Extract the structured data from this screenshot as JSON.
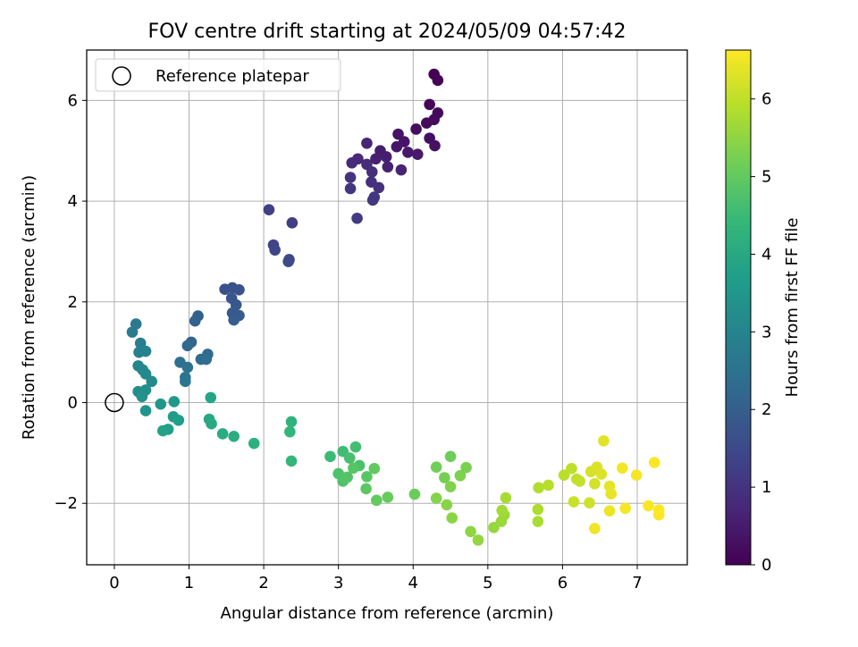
{
  "chart_data": {
    "type": "scatter",
    "title": "FOV centre drift starting at 2024/05/09 04:57:42",
    "xlabel": "Angular distance from reference (arcmin)",
    "ylabel": "Rotation from reference (arcmin)",
    "xlim": [
      -0.37,
      7.67
    ],
    "ylim": [
      -3.22,
      7.0
    ],
    "xticks": [
      0,
      1,
      2,
      3,
      4,
      5,
      6,
      7
    ],
    "yticks": [
      -2,
      0,
      2,
      4,
      6
    ],
    "xtick_labels": [
      "0",
      "1",
      "2",
      "3",
      "4",
      "5",
      "6",
      "7"
    ],
    "ytick_labels": [
      "−2",
      "0",
      "2",
      "4",
      "6"
    ],
    "grid": true,
    "legend": {
      "position": "top-left",
      "entries": [
        {
          "label": "Reference platepar",
          "marker": "open-circle"
        }
      ]
    },
    "reference_point": {
      "x": 0,
      "y": 0
    },
    "colorbar": {
      "label": "Hours from first FF file",
      "colormap": "viridis",
      "range": [
        0,
        6.63
      ],
      "ticks": [
        0,
        1,
        2,
        3,
        4,
        5,
        6
      ],
      "tick_labels": [
        "0",
        "1",
        "2",
        "3",
        "4",
        "5",
        "6"
      ]
    },
    "colormap_colors": [
      "#440154",
      "#482878",
      "#3e4989",
      "#31688e",
      "#26828e",
      "#1f9e89",
      "#35b779",
      "#6ece58",
      "#b5de2b",
      "#fde725"
    ],
    "points": [
      {
        "x": 4.28,
        "y": 6.52,
        "h": 0.02
      },
      {
        "x": 4.33,
        "y": 6.4,
        "h": 0.05
      },
      {
        "x": 4.22,
        "y": 5.92,
        "h": 0.1
      },
      {
        "x": 4.33,
        "y": 5.75,
        "h": 0.13
      },
      {
        "x": 4.28,
        "y": 5.62,
        "h": 0.17
      },
      {
        "x": 4.18,
        "y": 5.55,
        "h": 0.2
      },
      {
        "x": 4.04,
        "y": 5.43,
        "h": 0.24
      },
      {
        "x": 4.22,
        "y": 5.25,
        "h": 0.27
      },
      {
        "x": 4.29,
        "y": 5.1,
        "h": 0.3
      },
      {
        "x": 3.8,
        "y": 5.33,
        "h": 0.34
      },
      {
        "x": 3.88,
        "y": 5.18,
        "h": 0.38
      },
      {
        "x": 3.78,
        "y": 5.08,
        "h": 0.41
      },
      {
        "x": 3.93,
        "y": 4.97,
        "h": 0.45
      },
      {
        "x": 4.06,
        "y": 4.93,
        "h": 0.48
      },
      {
        "x": 3.56,
        "y": 5.0,
        "h": 0.52
      },
      {
        "x": 3.64,
        "y": 4.88,
        "h": 0.55
      },
      {
        "x": 3.5,
        "y": 4.84,
        "h": 0.59
      },
      {
        "x": 3.66,
        "y": 4.68,
        "h": 0.62
      },
      {
        "x": 3.84,
        "y": 4.62,
        "h": 0.66
      },
      {
        "x": 3.38,
        "y": 5.15,
        "h": 0.7
      },
      {
        "x": 3.26,
        "y": 4.84,
        "h": 0.74
      },
      {
        "x": 3.18,
        "y": 4.76,
        "h": 0.78
      },
      {
        "x": 3.38,
        "y": 4.73,
        "h": 0.82
      },
      {
        "x": 3.45,
        "y": 4.58,
        "h": 0.86
      },
      {
        "x": 3.44,
        "y": 4.38,
        "h": 0.9
      },
      {
        "x": 3.54,
        "y": 4.27,
        "h": 0.94
      },
      {
        "x": 3.16,
        "y": 4.47,
        "h": 0.98
      },
      {
        "x": 3.16,
        "y": 4.25,
        "h": 1.02
      },
      {
        "x": 3.48,
        "y": 4.08,
        "h": 1.06
      },
      {
        "x": 3.46,
        "y": 4.02,
        "h": 1.1
      },
      {
        "x": 3.25,
        "y": 3.66,
        "h": 1.16
      },
      {
        "x": 2.38,
        "y": 3.57,
        "h": 1.22
      },
      {
        "x": 2.07,
        "y": 3.83,
        "h": 1.28
      },
      {
        "x": 2.13,
        "y": 3.13,
        "h": 1.34
      },
      {
        "x": 2.15,
        "y": 3.03,
        "h": 1.4
      },
      {
        "x": 2.34,
        "y": 2.84,
        "h": 1.46
      },
      {
        "x": 2.33,
        "y": 2.8,
        "h": 1.52
      },
      {
        "x": 1.48,
        "y": 2.25,
        "h": 1.62
      },
      {
        "x": 1.58,
        "y": 2.28,
        "h": 1.68
      },
      {
        "x": 1.67,
        "y": 2.24,
        "h": 1.72
      },
      {
        "x": 1.57,
        "y": 2.07,
        "h": 1.76
      },
      {
        "x": 1.63,
        "y": 1.94,
        "h": 1.8
      },
      {
        "x": 1.58,
        "y": 1.78,
        "h": 1.85
      },
      {
        "x": 1.67,
        "y": 1.73,
        "h": 1.9
      },
      {
        "x": 1.6,
        "y": 1.64,
        "h": 1.95
      },
      {
        "x": 1.12,
        "y": 1.72,
        "h": 2.02
      },
      {
        "x": 1.08,
        "y": 1.62,
        "h": 2.08
      },
      {
        "x": 1.03,
        "y": 1.2,
        "h": 2.14
      },
      {
        "x": 0.98,
        "y": 1.13,
        "h": 2.2
      },
      {
        "x": 1.25,
        "y": 0.96,
        "h": 2.26
      },
      {
        "x": 1.16,
        "y": 0.86,
        "h": 2.32
      },
      {
        "x": 1.23,
        "y": 0.86,
        "h": 2.38
      },
      {
        "x": 0.88,
        "y": 0.8,
        "h": 2.44
      },
      {
        "x": 0.98,
        "y": 0.7,
        "h": 2.5
      },
      {
        "x": 0.95,
        "y": 0.5,
        "h": 2.56
      },
      {
        "x": 0.95,
        "y": 0.42,
        "h": 2.62
      },
      {
        "x": 0.29,
        "y": 1.56,
        "h": 2.7
      },
      {
        "x": 0.24,
        "y": 1.4,
        "h": 2.76
      },
      {
        "x": 0.35,
        "y": 1.18,
        "h": 2.82
      },
      {
        "x": 0.33,
        "y": 1.0,
        "h": 2.88
      },
      {
        "x": 0.42,
        "y": 1.02,
        "h": 2.94
      },
      {
        "x": 0.32,
        "y": 0.73,
        "h": 3.0
      },
      {
        "x": 0.38,
        "y": 0.65,
        "h": 3.06
      },
      {
        "x": 0.42,
        "y": 0.57,
        "h": 3.12
      },
      {
        "x": 0.5,
        "y": 0.42,
        "h": 3.18
      },
      {
        "x": 0.32,
        "y": 0.22,
        "h": 3.24
      },
      {
        "x": 0.42,
        "y": 0.25,
        "h": 3.3
      },
      {
        "x": 0.37,
        "y": 0.12,
        "h": 3.36
      },
      {
        "x": 0.42,
        "y": -0.16,
        "h": 3.42
      },
      {
        "x": 0.62,
        "y": -0.03,
        "h": 3.5
      },
      {
        "x": 0.8,
        "y": 0.02,
        "h": 3.56
      },
      {
        "x": 0.79,
        "y": -0.28,
        "h": 3.62
      },
      {
        "x": 0.86,
        "y": -0.35,
        "h": 3.68
      },
      {
        "x": 0.72,
        "y": -0.53,
        "h": 3.74
      },
      {
        "x": 0.65,
        "y": -0.56,
        "h": 3.8
      },
      {
        "x": 1.29,
        "y": 0.1,
        "h": 3.88
      },
      {
        "x": 1.27,
        "y": -0.33,
        "h": 3.94
      },
      {
        "x": 1.3,
        "y": -0.42,
        "h": 4.0
      },
      {
        "x": 1.45,
        "y": -0.62,
        "h": 4.06
      },
      {
        "x": 1.6,
        "y": -0.67,
        "h": 4.12
      },
      {
        "x": 1.87,
        "y": -0.81,
        "h": 4.2
      },
      {
        "x": 2.37,
        "y": -0.38,
        "h": 4.28
      },
      {
        "x": 2.35,
        "y": -0.58,
        "h": 4.34
      },
      {
        "x": 2.37,
        "y": -1.16,
        "h": 4.4
      },
      {
        "x": 2.89,
        "y": -1.07,
        "h": 4.5
      },
      {
        "x": 3.06,
        "y": -0.97,
        "h": 4.56
      },
      {
        "x": 3.23,
        "y": -0.88,
        "h": 4.62
      },
      {
        "x": 3.15,
        "y": -1.1,
        "h": 4.66
      },
      {
        "x": 3.28,
        "y": -1.25,
        "h": 4.7
      },
      {
        "x": 3.0,
        "y": -1.41,
        "h": 4.74
      },
      {
        "x": 3.06,
        "y": -1.56,
        "h": 4.78
      },
      {
        "x": 3.12,
        "y": -1.48,
        "h": 4.82
      },
      {
        "x": 3.2,
        "y": -1.3,
        "h": 4.86
      },
      {
        "x": 3.38,
        "y": -1.47,
        "h": 4.9
      },
      {
        "x": 3.37,
        "y": -1.71,
        "h": 4.94
      },
      {
        "x": 3.48,
        "y": -1.31,
        "h": 4.98
      },
      {
        "x": 3.51,
        "y": -1.94,
        "h": 5.02
      },
      {
        "x": 3.66,
        "y": -1.88,
        "h": 5.06
      },
      {
        "x": 4.02,
        "y": -1.82,
        "h": 5.1
      },
      {
        "x": 4.5,
        "y": -1.07,
        "h": 5.14
      },
      {
        "x": 4.31,
        "y": -1.28,
        "h": 5.18
      },
      {
        "x": 4.42,
        "y": -1.49,
        "h": 5.22
      },
      {
        "x": 4.71,
        "y": -1.29,
        "h": 5.26
      },
      {
        "x": 4.63,
        "y": -1.45,
        "h": 5.3
      },
      {
        "x": 4.5,
        "y": -1.67,
        "h": 5.34
      },
      {
        "x": 4.31,
        "y": -1.9,
        "h": 5.38
      },
      {
        "x": 4.45,
        "y": -2.03,
        "h": 5.42
      },
      {
        "x": 4.52,
        "y": -2.29,
        "h": 5.46
      },
      {
        "x": 4.77,
        "y": -2.56,
        "h": 5.5
      },
      {
        "x": 4.87,
        "y": -2.73,
        "h": 5.54
      },
      {
        "x": 5.08,
        "y": -2.48,
        "h": 5.58
      },
      {
        "x": 5.18,
        "y": -2.36,
        "h": 5.62
      },
      {
        "x": 5.22,
        "y": -2.23,
        "h": 5.66
      },
      {
        "x": 5.19,
        "y": -2.14,
        "h": 5.7
      },
      {
        "x": 5.24,
        "y": -1.89,
        "h": 5.74
      },
      {
        "x": 5.67,
        "y": -2.36,
        "h": 5.78
      },
      {
        "x": 5.67,
        "y": -2.12,
        "h": 5.82
      },
      {
        "x": 5.68,
        "y": -1.69,
        "h": 5.86
      },
      {
        "x": 5.81,
        "y": -1.64,
        "h": 5.9
      },
      {
        "x": 6.02,
        "y": -1.44,
        "h": 5.94
      },
      {
        "x": 6.12,
        "y": -1.31,
        "h": 5.98
      },
      {
        "x": 6.19,
        "y": -1.52,
        "h": 6.02
      },
      {
        "x": 6.23,
        "y": -1.56,
        "h": 6.06
      },
      {
        "x": 6.15,
        "y": -1.97,
        "h": 6.1
      },
      {
        "x": 6.36,
        "y": -1.99,
        "h": 6.14
      },
      {
        "x": 6.43,
        "y": -1.61,
        "h": 6.18
      },
      {
        "x": 6.38,
        "y": -1.37,
        "h": 6.22
      },
      {
        "x": 6.46,
        "y": -1.28,
        "h": 6.26
      },
      {
        "x": 6.52,
        "y": -1.42,
        "h": 6.3
      },
      {
        "x": 6.55,
        "y": -0.76,
        "h": 6.34
      },
      {
        "x": 6.63,
        "y": -1.66,
        "h": 6.38
      },
      {
        "x": 6.65,
        "y": -1.81,
        "h": 6.42
      },
      {
        "x": 6.63,
        "y": -2.15,
        "h": 6.46
      },
      {
        "x": 6.43,
        "y": -2.5,
        "h": 6.5
      },
      {
        "x": 6.8,
        "y": -1.3,
        "h": 6.52
      },
      {
        "x": 6.84,
        "y": -2.1,
        "h": 6.55
      },
      {
        "x": 6.99,
        "y": -1.44,
        "h": 6.57
      },
      {
        "x": 7.15,
        "y": -2.05,
        "h": 6.59
      },
      {
        "x": 7.23,
        "y": -1.19,
        "h": 6.61
      },
      {
        "x": 7.29,
        "y": -2.13,
        "h": 6.62
      },
      {
        "x": 7.29,
        "y": -2.23,
        "h": 6.63
      }
    ]
  }
}
